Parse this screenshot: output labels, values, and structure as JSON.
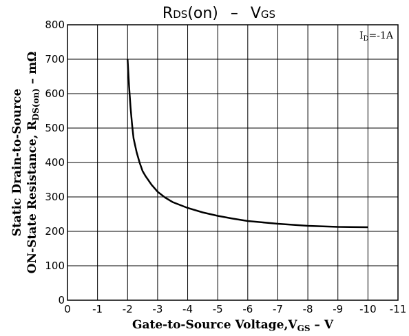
{
  "chart_data": {
    "type": "line",
    "title": {
      "main_prefix": "R",
      "main_sub": "DS",
      "main_suffix": "(on)",
      "dash": "–",
      "v_prefix": "V",
      "v_sub": "GS"
    },
    "xlabel": {
      "text": "Gate-to-Source Voltage,V",
      "sub": "GS",
      "suffix": " – V"
    },
    "ylabel": {
      "line1": "Static Drain-to-Source",
      "line2_prefix": "ON-State Resistance, R",
      "line2_sub": "DS(on)",
      "line2_suffix": " – mΩ"
    },
    "annotation": {
      "prefix": "I",
      "sub": "D",
      "suffix": "=-1A"
    },
    "xlim": [
      0,
      -11
    ],
    "ylim": [
      0,
      800
    ],
    "x_ticks": [
      0,
      -1,
      -2,
      -3,
      -4,
      -5,
      -6,
      -7,
      -8,
      -9,
      -10,
      -11
    ],
    "x_tick_labels": [
      "0",
      "-1",
      "-2",
      "-3",
      "-4",
      "-5",
      "-6",
      "-7",
      "-8",
      "-9",
      "-10",
      "-11"
    ],
    "y_ticks": [
      0,
      100,
      200,
      300,
      400,
      500,
      600,
      700,
      800
    ],
    "y_tick_labels": [
      "0",
      "100",
      "200",
      "300",
      "400",
      "500",
      "600",
      "700",
      "800"
    ],
    "grid": true,
    "series": [
      {
        "x": [
          -2.0,
          -2.05,
          -2.1,
          -2.15,
          -2.2,
          -2.3,
          -2.4,
          -2.5,
          -2.6,
          -2.8,
          -3.0,
          -3.25,
          -3.5,
          -4.0,
          -4.5,
          -5.0,
          -5.5,
          -6.0,
          -7.0,
          -8.0,
          -9.0,
          -10.0
        ],
        "y": [
          700,
          620,
          560,
          510,
          470,
          430,
          400,
          375,
          360,
          335,
          315,
          298,
          285,
          268,
          255,
          245,
          237,
          230,
          222,
          216,
          213,
          212
        ]
      }
    ]
  }
}
